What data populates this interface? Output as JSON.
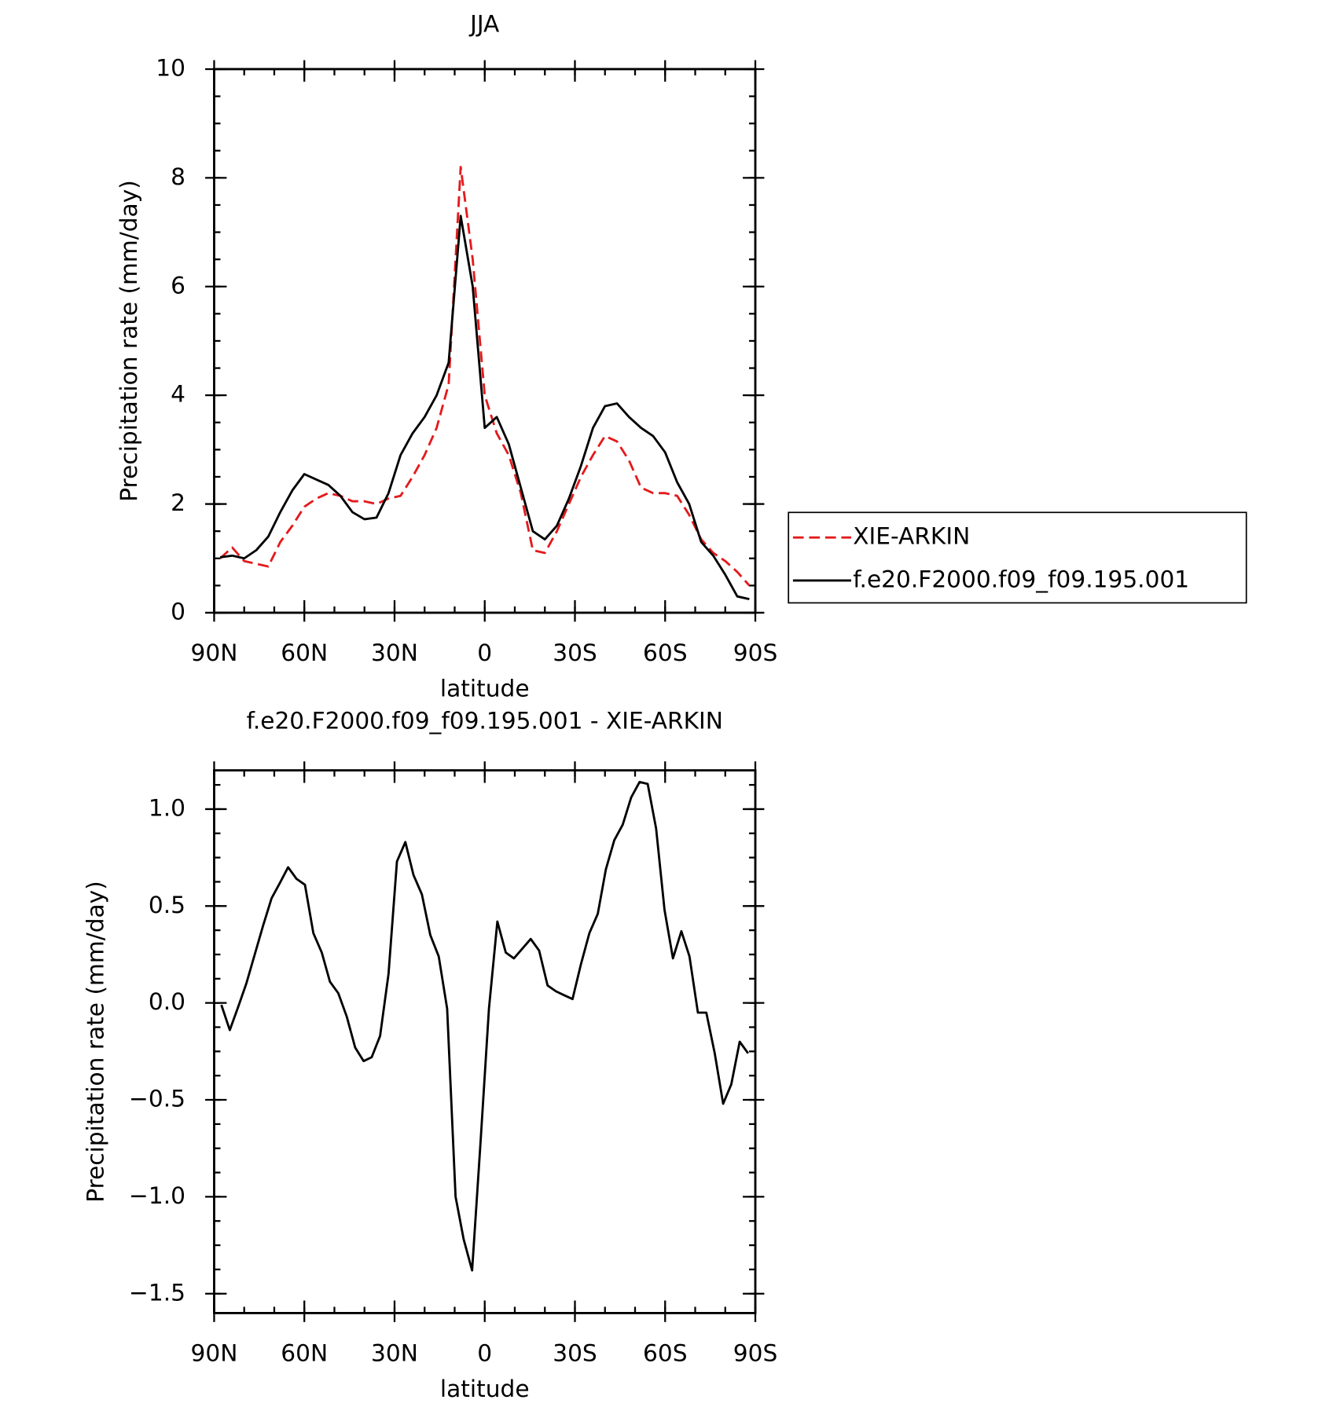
{
  "chart_data": [
    {
      "type": "line",
      "title": "JJA",
      "x_label": "latitude",
      "y_label": "Precipitation rate (mm/day)",
      "x": [
        88,
        84,
        80,
        76,
        72,
        68,
        64,
        60,
        56,
        52,
        48,
        44,
        40,
        36,
        32,
        28,
        24,
        20,
        16,
        12,
        8,
        4,
        0,
        -4,
        -8,
        -12,
        -16,
        -20,
        -24,
        -28,
        -32,
        -36,
        -40,
        -44,
        -48,
        -52,
        -56,
        -60,
        -64,
        -68,
        -72,
        -76,
        -80,
        -84,
        -88
      ],
      "series": [
        {
          "name": "XIE-ARKIN",
          "color": "#e41a1c",
          "dash": true,
          "values": [
            1.0,
            1.2,
            0.95,
            0.9,
            0.85,
            1.3,
            1.6,
            1.95,
            2.1,
            2.2,
            2.15,
            2.05,
            2.05,
            2.0,
            2.1,
            2.15,
            2.5,
            2.9,
            3.4,
            4.2,
            8.2,
            6.5,
            4.0,
            3.3,
            2.9,
            2.2,
            1.15,
            1.1,
            1.5,
            2.0,
            2.5,
            2.9,
            3.25,
            3.15,
            2.8,
            2.3,
            2.2,
            2.2,
            2.15,
            1.8,
            1.35,
            1.1,
            0.95,
            0.75,
            0.5
          ]
        },
        {
          "name": "f.e20.F2000.f09_f09.195.001",
          "color": "#000000",
          "dash": false,
          "values": [
            1.02,
            1.05,
            1.0,
            1.15,
            1.4,
            1.85,
            2.25,
            2.55,
            2.45,
            2.35,
            2.15,
            1.85,
            1.72,
            1.75,
            2.2,
            2.9,
            3.3,
            3.6,
            4.0,
            4.6,
            7.3,
            6.0,
            3.4,
            3.6,
            3.1,
            2.3,
            1.5,
            1.35,
            1.6,
            2.1,
            2.7,
            3.4,
            3.8,
            3.85,
            3.6,
            3.4,
            3.25,
            2.95,
            2.4,
            2.0,
            1.3,
            1.05,
            0.7,
            0.3,
            0.25
          ]
        }
      ],
      "xlim": [
        90,
        -90
      ],
      "xticks": [
        {
          "value": 90,
          "label": "90N"
        },
        {
          "value": 60,
          "label": "60N"
        },
        {
          "value": 30,
          "label": "30N"
        },
        0,
        {
          "value": -30,
          "label": "30S"
        },
        {
          "value": -60,
          "label": "60S"
        },
        {
          "value": -90,
          "label": "90S"
        }
      ],
      "ylim": [
        0,
        10
      ],
      "yticks": [
        0,
        2,
        4,
        6,
        8,
        10
      ],
      "legend": "right"
    },
    {
      "type": "line",
      "title": "f.e20.F2000.f09_f09.195.001 - XIE-ARKIN",
      "x_label": "latitude",
      "y_label": "Precipitation rate (mm/day)",
      "x": [
        87.6,
        84.8,
        82.0,
        79.3,
        76.5,
        73.7,
        70.9,
        68.1,
        65.4,
        62.6,
        59.8,
        57.0,
        54.2,
        51.5,
        48.7,
        45.9,
        43.1,
        40.3,
        37.6,
        34.8,
        32.0,
        29.2,
        26.4,
        23.7,
        20.9,
        18.1,
        15.3,
        12.5,
        9.7,
        7.0,
        4.2,
        1.4,
        -1.4,
        -4.2,
        -7.0,
        -9.7,
        -12.5,
        -15.3,
        -18.1,
        -20.9,
        -23.7,
        -26.4,
        -29.2,
        -32.0,
        -34.8,
        -37.6,
        -40.3,
        -43.1,
        -45.9,
        -48.7,
        -51.5,
        -54.2,
        -57.0,
        -59.8,
        -62.6,
        -65.4,
        -68.1,
        -70.9,
        -73.7,
        -76.5,
        -79.3,
        -82.0,
        -84.8,
        -87.6
      ],
      "series": [
        {
          "name": "f.e20.F2000.f09_f09.195.001 - XIE-ARKIN",
          "color": "#000000",
          "dash": false,
          "values": [
            -0.01,
            -0.14,
            -0.02,
            0.1,
            0.25,
            0.4,
            0.54,
            0.62,
            0.7,
            0.64,
            0.61,
            0.36,
            0.26,
            0.11,
            0.05,
            -0.07,
            -0.23,
            -0.3,
            -0.28,
            -0.17,
            0.15,
            0.73,
            0.83,
            0.66,
            0.56,
            0.35,
            0.24,
            -0.03,
            -1.0,
            -1.22,
            -1.38,
            -0.72,
            -0.03,
            0.42,
            0.26,
            0.23,
            0.28,
            0.33,
            0.27,
            0.09,
            0.06,
            0.04,
            0.02,
            0.2,
            0.36,
            0.46,
            0.69,
            0.84,
            0.92,
            1.06,
            1.14,
            1.13,
            0.9,
            0.48,
            0.23,
            0.37,
            0.24,
            -0.05,
            -0.05,
            -0.26,
            -0.52,
            -0.42,
            -0.2,
            -0.26
          ]
        }
      ],
      "xlim": [
        90,
        -90
      ],
      "xticks": [
        {
          "value": 90,
          "label": "90N"
        },
        {
          "value": 60,
          "label": "60N"
        },
        {
          "value": 30,
          "label": "30N"
        },
        0,
        {
          "value": -30,
          "label": "30S"
        },
        {
          "value": -60,
          "label": "60S"
        },
        {
          "value": -90,
          "label": "90S"
        }
      ],
      "ylim": [
        -1.6,
        1.2
      ],
      "yticks": [
        {
          "value": -1.5,
          "label": "−1.5"
        },
        {
          "value": -1.0,
          "label": "−1.0"
        },
        {
          "value": -0.5,
          "label": "−0.5"
        },
        {
          "value": 0.0,
          "label": "0.0"
        },
        {
          "value": 0.5,
          "label": "0.5"
        },
        {
          "value": 1.0,
          "label": "1.0"
        }
      ]
    }
  ]
}
